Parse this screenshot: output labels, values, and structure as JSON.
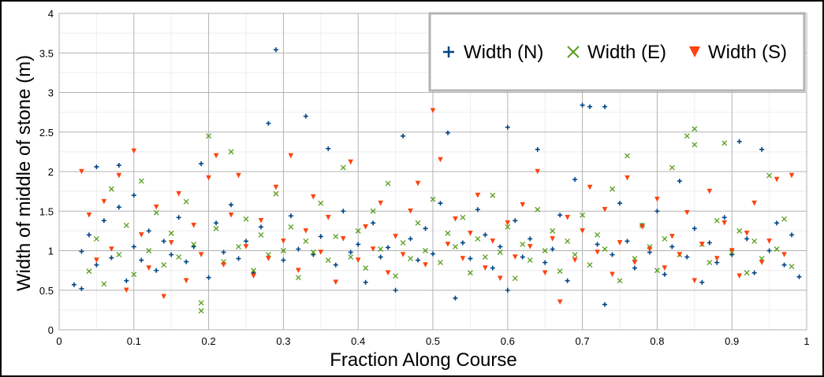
{
  "chart_data": {
    "type": "scatter",
    "title": "",
    "xlabel": "Fraction Along Course",
    "ylabel": "Width of middle of stone (m)",
    "xlim": [
      0,
      1
    ],
    "ylim": [
      0,
      4
    ],
    "x_ticks": [
      "0",
      "0.1",
      "0.2",
      "0.3",
      "0.4",
      "0.5",
      "0.6",
      "0.7",
      "0.8",
      "0.9",
      "1"
    ],
    "y_ticks": [
      "0",
      "0.5",
      "1",
      "1.5",
      "2",
      "2.5",
      "3",
      "3.5",
      "4"
    ],
    "grid": true,
    "legend_position": "top-right",
    "series": [
      {
        "name": "Width (N)",
        "marker": "plus",
        "color": "#004586",
        "points": [
          [
            0.02,
            0.57
          ],
          [
            0.03,
            0.52
          ],
          [
            0.03,
            0.99
          ],
          [
            0.04,
            1.2
          ],
          [
            0.05,
            0.82
          ],
          [
            0.05,
            2.06
          ],
          [
            0.06,
            1.38
          ],
          [
            0.07,
            0.91
          ],
          [
            0.08,
            2.08
          ],
          [
            0.08,
            1.55
          ],
          [
            0.09,
            0.62
          ],
          [
            0.1,
            1.05
          ],
          [
            0.1,
            1.7
          ],
          [
            0.11,
            0.88
          ],
          [
            0.12,
            1.25
          ],
          [
            0.13,
            0.75
          ],
          [
            0.14,
            1.12
          ],
          [
            0.15,
            0.95
          ],
          [
            0.16,
            1.42
          ],
          [
            0.17,
            0.86
          ],
          [
            0.18,
            1.05
          ],
          [
            0.19,
            2.1
          ],
          [
            0.2,
            0.66
          ],
          [
            0.21,
            1.35
          ],
          [
            0.22,
            0.98
          ],
          [
            0.23,
            1.58
          ],
          [
            0.24,
            0.9
          ],
          [
            0.25,
            1.12
          ],
          [
            0.26,
            0.72
          ],
          [
            0.27,
            1.3
          ],
          [
            0.28,
            2.61
          ],
          [
            0.29,
            3.54
          ],
          [
            0.3,
            0.88
          ],
          [
            0.31,
            1.44
          ],
          [
            0.32,
            1.02
          ],
          [
            0.33,
            2.7
          ],
          [
            0.34,
            0.95
          ],
          [
            0.35,
            1.18
          ],
          [
            0.36,
            2.29
          ],
          [
            0.37,
            0.82
          ],
          [
            0.38,
            1.5
          ],
          [
            0.39,
            0.98
          ],
          [
            0.4,
            1.08
          ],
          [
            0.41,
            0.6
          ],
          [
            0.42,
            1.35
          ],
          [
            0.43,
            0.92
          ],
          [
            0.44,
            1.04
          ],
          [
            0.45,
            0.5
          ],
          [
            0.46,
            2.45
          ],
          [
            0.47,
            1.15
          ],
          [
            0.48,
            0.88
          ],
          [
            0.49,
            1.28
          ],
          [
            0.5,
            0.96
          ],
          [
            0.51,
            1.6
          ],
          [
            0.52,
            2.49
          ],
          [
            0.53,
            0.4
          ],
          [
            0.54,
            1.1
          ],
          [
            0.55,
            0.9
          ],
          [
            0.56,
            1.52
          ],
          [
            0.57,
            1.2
          ],
          [
            0.58,
            0.78
          ],
          [
            0.59,
            1.05
          ],
          [
            0.6,
            0.5
          ],
          [
            0.6,
            2.56
          ],
          [
            0.61,
            1.38
          ],
          [
            0.62,
            0.92
          ],
          [
            0.63,
            1.15
          ],
          [
            0.64,
            2.28
          ],
          [
            0.65,
            0.85
          ],
          [
            0.66,
            1.02
          ],
          [
            0.67,
            1.45
          ],
          [
            0.68,
            0.62
          ],
          [
            0.69,
            1.9
          ],
          [
            0.7,
            2.84
          ],
          [
            0.71,
            2.82
          ],
          [
            0.72,
            1.08
          ],
          [
            0.73,
            2.82
          ],
          [
            0.73,
            0.32
          ],
          [
            0.74,
            0.95
          ],
          [
            0.75,
            1.6
          ],
          [
            0.76,
            1.12
          ],
          [
            0.77,
            0.78
          ],
          [
            0.78,
            1.32
          ],
          [
            0.79,
            0.98
          ],
          [
            0.8,
            1.5
          ],
          [
            0.81,
            0.7
          ],
          [
            0.82,
            1.05
          ],
          [
            0.83,
            1.88
          ],
          [
            0.84,
            0.92
          ],
          [
            0.85,
            1.28
          ],
          [
            0.86,
            0.6
          ],
          [
            0.87,
            1.1
          ],
          [
            0.88,
            0.85
          ],
          [
            0.89,
            1.42
          ],
          [
            0.9,
            0.95
          ],
          [
            0.91,
            2.38
          ],
          [
            0.92,
            1.15
          ],
          [
            0.93,
            0.72
          ],
          [
            0.94,
            2.28
          ],
          [
            0.95,
            1.0
          ],
          [
            0.96,
            1.35
          ],
          [
            0.97,
            0.82
          ],
          [
            0.98,
            1.2
          ],
          [
            0.99,
            0.67
          ]
        ]
      },
      {
        "name": "Width (E)",
        "marker": "x",
        "color": "#579d1c",
        "points": [
          [
            0.04,
            0.74
          ],
          [
            0.05,
            1.15
          ],
          [
            0.06,
            0.58
          ],
          [
            0.07,
            1.78
          ],
          [
            0.08,
            0.95
          ],
          [
            0.09,
            1.32
          ],
          [
            0.1,
            0.7
          ],
          [
            0.11,
            1.88
          ],
          [
            0.12,
            1.0
          ],
          [
            0.13,
            1.48
          ],
          [
            0.14,
            0.82
          ],
          [
            0.15,
            1.22
          ],
          [
            0.16,
            0.92
          ],
          [
            0.17,
            1.62
          ],
          [
            0.18,
            1.08
          ],
          [
            0.19,
            0.34
          ],
          [
            0.19,
            0.24
          ],
          [
            0.2,
            2.45
          ],
          [
            0.21,
            1.28
          ],
          [
            0.22,
            0.86
          ],
          [
            0.23,
            2.25
          ],
          [
            0.24,
            1.05
          ],
          [
            0.25,
            1.4
          ],
          [
            0.26,
            0.75
          ],
          [
            0.27,
            1.2
          ],
          [
            0.28,
            0.95
          ],
          [
            0.29,
            1.72
          ],
          [
            0.3,
            1.0
          ],
          [
            0.31,
            1.3
          ],
          [
            0.32,
            0.66
          ],
          [
            0.33,
            1.12
          ],
          [
            0.34,
            0.98
          ],
          [
            0.35,
            1.6
          ],
          [
            0.36,
            0.88
          ],
          [
            0.37,
            1.18
          ],
          [
            0.38,
            2.05
          ],
          [
            0.39,
            0.92
          ],
          [
            0.4,
            1.25
          ],
          [
            0.41,
            0.78
          ],
          [
            0.42,
            1.5
          ],
          [
            0.43,
            1.02
          ],
          [
            0.44,
            1.85
          ],
          [
            0.45,
            0.68
          ],
          [
            0.46,
            1.1
          ],
          [
            0.47,
            0.9
          ],
          [
            0.48,
            1.35
          ],
          [
            0.49,
            1.0
          ],
          [
            0.5,
            1.65
          ],
          [
            0.51,
            0.85
          ],
          [
            0.52,
            1.22
          ],
          [
            0.53,
            1.05
          ],
          [
            0.54,
            1.42
          ],
          [
            0.55,
            0.72
          ],
          [
            0.56,
            1.15
          ],
          [
            0.57,
            0.92
          ],
          [
            0.58,
            1.7
          ],
          [
            0.59,
            0.98
          ],
          [
            0.6,
            1.3
          ],
          [
            0.61,
            0.65
          ],
          [
            0.62,
            1.08
          ],
          [
            0.63,
            0.88
          ],
          [
            0.64,
            1.52
          ],
          [
            0.65,
            1.0
          ],
          [
            0.66,
            1.25
          ],
          [
            0.67,
            0.74
          ],
          [
            0.68,
            1.12
          ],
          [
            0.69,
            0.95
          ],
          [
            0.7,
            1.45
          ],
          [
            0.71,
            0.82
          ],
          [
            0.72,
            1.2
          ],
          [
            0.73,
            1.02
          ],
          [
            0.74,
            1.78
          ],
          [
            0.75,
            0.62
          ],
          [
            0.76,
            2.2
          ],
          [
            0.77,
            0.9
          ],
          [
            0.78,
            1.32
          ],
          [
            0.79,
            1.05
          ],
          [
            0.8,
            0.75
          ],
          [
            0.81,
            1.15
          ],
          [
            0.82,
            2.05
          ],
          [
            0.83,
            0.95
          ],
          [
            0.84,
            2.45
          ],
          [
            0.85,
            2.54
          ],
          [
            0.85,
            2.34
          ],
          [
            0.86,
            1.08
          ],
          [
            0.87,
            0.85
          ],
          [
            0.88,
            1.38
          ],
          [
            0.89,
            2.36
          ],
          [
            0.9,
            0.98
          ],
          [
            0.91,
            1.25
          ],
          [
            0.92,
            0.72
          ],
          [
            0.93,
            1.12
          ],
          [
            0.94,
            0.9
          ],
          [
            0.95,
            1.95
          ],
          [
            0.96,
            1.02
          ],
          [
            0.97,
            1.4
          ],
          [
            0.98,
            0.8
          ]
        ]
      },
      {
        "name": "Width (S)",
        "marker": "triangle-down",
        "color": "#ff420e",
        "points": [
          [
            0.03,
            2.0
          ],
          [
            0.04,
            1.45
          ],
          [
            0.05,
            0.88
          ],
          [
            0.06,
            1.62
          ],
          [
            0.07,
            1.02
          ],
          [
            0.08,
            1.95
          ],
          [
            0.09,
            0.5
          ],
          [
            0.1,
            2.26
          ],
          [
            0.11,
            1.2
          ],
          [
            0.12,
            0.78
          ],
          [
            0.13,
            1.55
          ],
          [
            0.14,
            0.42
          ],
          [
            0.15,
            1.1
          ],
          [
            0.16,
            1.72
          ],
          [
            0.17,
            0.62
          ],
          [
            0.18,
            1.32
          ],
          [
            0.19,
            0.95
          ],
          [
            0.2,
            1.92
          ],
          [
            0.21,
            2.2
          ],
          [
            0.22,
            0.82
          ],
          [
            0.23,
            1.45
          ],
          [
            0.24,
            1.95
          ],
          [
            0.25,
            1.05
          ],
          [
            0.26,
            0.68
          ],
          [
            0.27,
            1.38
          ],
          [
            0.28,
            0.9
          ],
          [
            0.29,
            1.8
          ],
          [
            0.3,
            1.12
          ],
          [
            0.31,
            2.2
          ],
          [
            0.32,
            0.75
          ],
          [
            0.33,
            1.25
          ],
          [
            0.34,
            1.68
          ],
          [
            0.35,
            0.98
          ],
          [
            0.36,
            1.42
          ],
          [
            0.37,
            0.6
          ],
          [
            0.38,
            1.15
          ],
          [
            0.39,
            2.12
          ],
          [
            0.4,
            0.88
          ],
          [
            0.41,
            1.3
          ],
          [
            0.42,
            1.02
          ],
          [
            0.43,
            1.6
          ],
          [
            0.44,
            0.72
          ],
          [
            0.45,
            1.18
          ],
          [
            0.46,
            0.95
          ],
          [
            0.47,
            1.5
          ],
          [
            0.48,
            1.85
          ],
          [
            0.49,
            0.82
          ],
          [
            0.5,
            2.77
          ],
          [
            0.51,
            2.15
          ],
          [
            0.52,
            1.08
          ],
          [
            0.53,
            1.4
          ],
          [
            0.54,
            0.9
          ],
          [
            0.55,
            1.22
          ],
          [
            0.56,
            1.7
          ],
          [
            0.57,
            0.78
          ],
          [
            0.58,
            1.12
          ],
          [
            0.59,
            0.65
          ],
          [
            0.6,
            1.35
          ],
          [
            0.61,
            0.92
          ],
          [
            0.62,
            1.58
          ],
          [
            0.63,
            1.05
          ],
          [
            0.64,
            2.0
          ],
          [
            0.65,
            0.72
          ],
          [
            0.66,
            1.15
          ],
          [
            0.67,
            0.35
          ],
          [
            0.68,
            1.42
          ],
          [
            0.69,
            0.88
          ],
          [
            0.7,
            1.25
          ],
          [
            0.71,
            1.8
          ],
          [
            0.72,
            0.98
          ],
          [
            0.73,
            1.52
          ],
          [
            0.74,
            0.7
          ],
          [
            0.75,
            1.1
          ],
          [
            0.76,
            1.92
          ],
          [
            0.77,
            0.85
          ],
          [
            0.78,
            1.3
          ],
          [
            0.79,
            1.02
          ],
          [
            0.8,
            1.65
          ],
          [
            0.81,
            0.78
          ],
          [
            0.82,
            1.18
          ],
          [
            0.83,
            0.95
          ],
          [
            0.84,
            1.48
          ],
          [
            0.85,
            0.62
          ],
          [
            0.86,
            1.08
          ],
          [
            0.87,
            1.75
          ],
          [
            0.88,
            0.9
          ],
          [
            0.89,
            1.35
          ],
          [
            0.9,
            1.0
          ],
          [
            0.91,
            0.68
          ],
          [
            0.92,
            1.22
          ],
          [
            0.93,
            1.6
          ],
          [
            0.94,
            0.85
          ],
          [
            0.95,
            1.12
          ],
          [
            0.96,
            1.9
          ],
          [
            0.97,
            0.95
          ],
          [
            0.98,
            1.95
          ]
        ]
      }
    ]
  }
}
